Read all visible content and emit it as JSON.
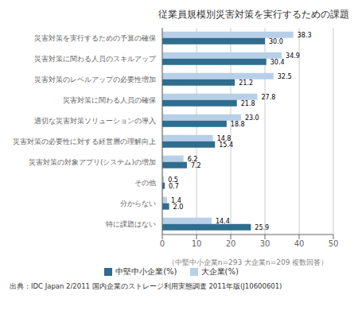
{
  "chart_data": {
    "type": "bar",
    "orientation": "horizontal",
    "title": "従業員規模別災害対策を実行するための課題",
    "categories": [
      "災害対策を実行するための予算の確保",
      "災害対策に関わる人員のスキルアップ",
      "災害対策のレベルアップの必要性増加",
      "災害対策に関わる人員の確保",
      "適切な災害対策ソリューションの導入",
      "災害対策の必要性に対する経営層の理解向上",
      "災害対策の対象アプリ(システム)の増加",
      "その他",
      "分からない",
      "特に課題はない"
    ],
    "series": [
      {
        "name": "中堅中小企業(%)",
        "color": "#2e6d8e",
        "values": [
          30.0,
          30.4,
          21.2,
          21.8,
          18.8,
          15.4,
          7.2,
          0.7,
          2.0,
          25.9
        ],
        "value_labels": [
          "30.0",
          "30.4",
          "21.2",
          "21.8",
          "18.8",
          "15.4",
          "7.2",
          "0.7",
          "2.0",
          "25.9"
        ]
      },
      {
        "name": "大企業(%)",
        "color": "#b8cfe8",
        "values": [
          38.3,
          34.9,
          32.5,
          27.8,
          23.0,
          14.8,
          6.2,
          0.5,
          1.4,
          14.4
        ],
        "value_labels": [
          "38.3",
          "34.9",
          "32.5",
          "27.8",
          "23.0",
          "14.8",
          "6.2",
          "0.5",
          "1.4",
          "14.4"
        ]
      }
    ],
    "xlim": [
      0,
      50
    ],
    "xticks": [
      0,
      10,
      20,
      30,
      40,
      50
    ],
    "xlabel": "（中堅中小企業n=293 大企業n=209 複数回答）",
    "annotations": [
      "出典：IDC Japan 2/2011 国内企業のストレージ利用実態調査 2011年版(J10600601)"
    ],
    "grid": true,
    "legend": "bottom",
    "data_labels": true
  }
}
